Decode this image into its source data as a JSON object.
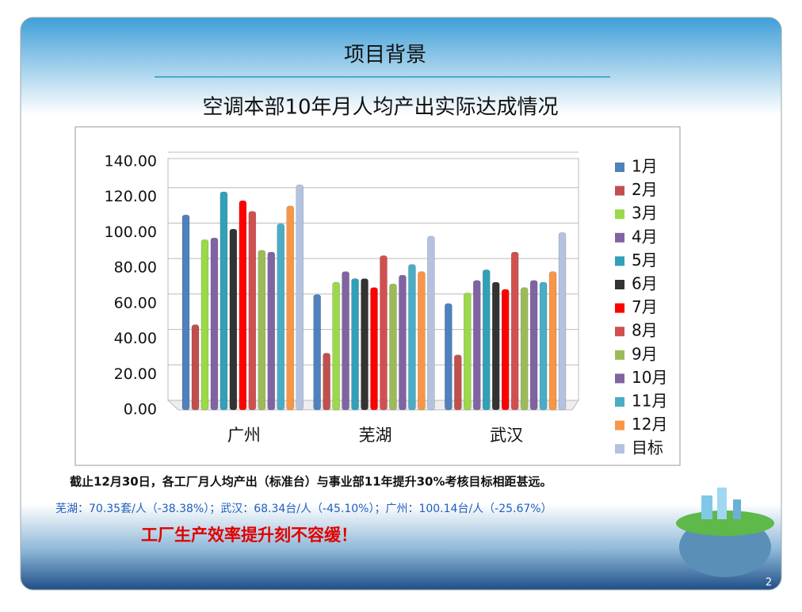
{
  "slide": {
    "title": "项目背景",
    "note": "截止12月30日，各工厂月人均产出（标准台）与事业部11年提升30%考核目标相距甚远。",
    "detail": "芜湖：70.35套/人（-38.38%）；武汉：68.34台/人（-45.10%）；广州：100.14台/人（-25.67%）",
    "slogan": "工厂生产效率提升刻不容缓！",
    "page_number": "2"
  },
  "chart_data": {
    "type": "bar",
    "title": "空调本部10年月人均产出实际达成情况",
    "categories": [
      "广州",
      "芜湖",
      "武汉"
    ],
    "series": [
      {
        "name": "1月",
        "color": "#4f81bd",
        "values": [
          110,
          65,
          60
        ]
      },
      {
        "name": "2月",
        "color": "#c0504d",
        "values": [
          48,
          32,
          31
        ]
      },
      {
        "name": "3月",
        "color": "#9bd84a",
        "values": [
          96,
          72,
          66
        ]
      },
      {
        "name": "4月",
        "color": "#8064a2",
        "values": [
          97,
          78,
          73
        ]
      },
      {
        "name": "5月",
        "color": "#31a0b8",
        "values": [
          123,
          74,
          79
        ]
      },
      {
        "name": "6月",
        "color": "#333333",
        "values": [
          102,
          74,
          72
        ]
      },
      {
        "name": "7月",
        "color": "#ff0000",
        "values": [
          118,
          69,
          68
        ]
      },
      {
        "name": "8月",
        "color": "#d05050",
        "values": [
          112,
          87,
          89
        ]
      },
      {
        "name": "9月",
        "color": "#9bbb59",
        "values": [
          90,
          71,
          69
        ]
      },
      {
        "name": "10月",
        "color": "#8064a2",
        "values": [
          89,
          76,
          73
        ]
      },
      {
        "name": "11月",
        "color": "#4bacc6",
        "values": [
          105,
          82,
          72
        ]
      },
      {
        "name": "12月",
        "color": "#f79646",
        "values": [
          115,
          78,
          78
        ]
      },
      {
        "name": "目标",
        "color": "#b4c2e0",
        "values": [
          127,
          98,
          100
        ]
      }
    ],
    "ylim": [
      0,
      140
    ],
    "yticks": [
      {
        "value": 0,
        "label": "0.00"
      },
      {
        "value": 20,
        "label": "20.00"
      },
      {
        "value": 40,
        "label": "40.00"
      },
      {
        "value": 60,
        "label": "60.00"
      },
      {
        "value": 80,
        "label": "80.00"
      },
      {
        "value": 100,
        "label": "100.00"
      },
      {
        "value": 120,
        "label": "120.00"
      },
      {
        "value": 140,
        "label": "140.00"
      }
    ],
    "grid": true,
    "legend": "right"
  }
}
